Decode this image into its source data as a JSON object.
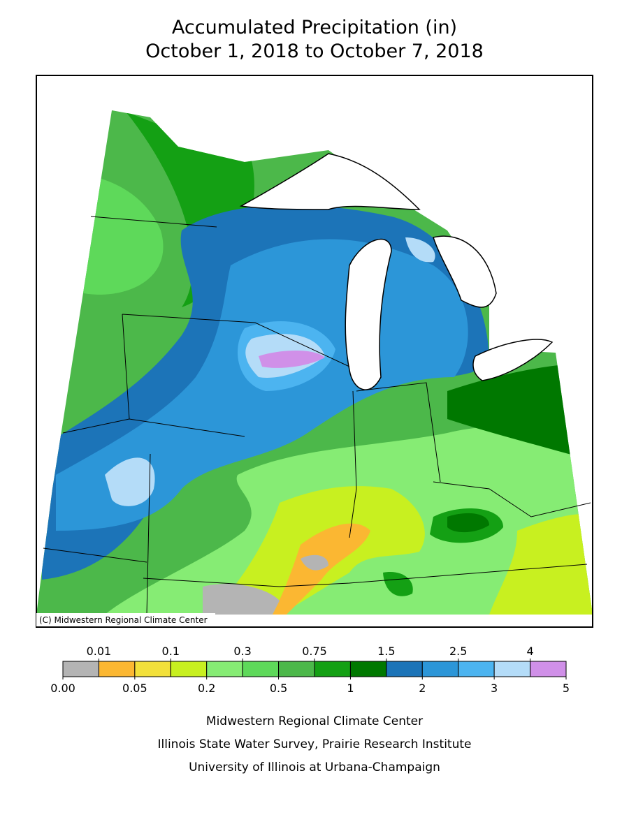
{
  "header": {
    "title": "Accumulated Precipitation (in)",
    "subtitle": "October 1, 2018 to October 7, 2018"
  },
  "map": {
    "copyright": "(C) Midwestern Regional Climate Center"
  },
  "legend": {
    "colors": [
      "#b4b4b4",
      "#fbb732",
      "#f2e03a",
      "#c8f020",
      "#86ec74",
      "#5ed95a",
      "#4cb84a",
      "#14a014",
      "#007800",
      "#1c74b8",
      "#2c96d8",
      "#4cb4f0",
      "#b4dcf8",
      "#d090e8"
    ],
    "bounds": [
      {
        "value": 0,
        "label": "0.00"
      },
      0.01,
      0.05,
      0.1,
      0.2,
      0.3,
      0.5,
      0.75,
      1,
      1.5,
      2,
      2.5,
      3,
      4,
      5
    ]
  },
  "footer": {
    "lines": [
      "Midwestern Regional Climate Center",
      "Illinois State Water Survey, Prairie Research Institute",
      "University of Illinois at Urbana-Champaign"
    ]
  }
}
